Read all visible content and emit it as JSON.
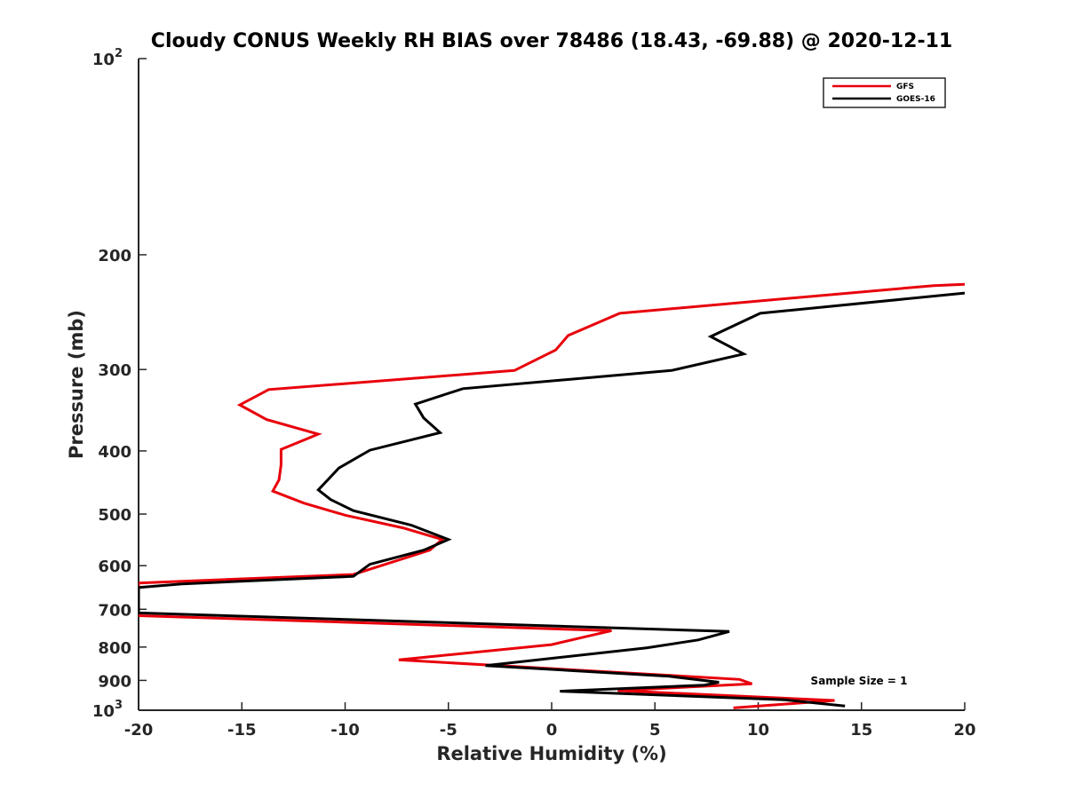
{
  "chart_data": {
    "type": "line",
    "title": "Cloudy CONUS Weekly RH BIAS over 78486 (18.43, -69.88) @ 2020-12-11",
    "xlabel": "Relative Humidity (%)",
    "ylabel": "Pressure (mb)",
    "xlim": [
      -20,
      20
    ],
    "ylim": [
      100,
      1000
    ],
    "y_scale": "log",
    "y_reversed": true,
    "grid": false,
    "legend_placement": "top-right",
    "x_ticks": [
      "-20",
      "-15",
      "-10",
      "-5",
      "0",
      "5",
      "10",
      "15",
      "20"
    ],
    "y_ticks": [
      {
        "value": 100,
        "base": "10",
        "exp": "2"
      },
      {
        "value": 200,
        "label": "200"
      },
      {
        "value": 300,
        "label": "300"
      },
      {
        "value": 400,
        "label": "400"
      },
      {
        "value": 500,
        "label": "500"
      },
      {
        "value": 600,
        "label": "600"
      },
      {
        "value": 700,
        "label": "700"
      },
      {
        "value": 800,
        "label": "800"
      },
      {
        "value": 900,
        "label": "900"
      },
      {
        "value": 1000,
        "base": "10",
        "exp": "3"
      }
    ],
    "annotation": "Sample Size = 1",
    "series": [
      {
        "name": "GFS",
        "color": "#e8000b",
        "points": [
          [
            20,
            222
          ],
          [
            18.5,
            223
          ],
          [
            3.3,
            246
          ],
          [
            0.8,
            266
          ],
          [
            0.2,
            280
          ],
          [
            -1.8,
            301
          ],
          [
            -13.7,
            322
          ],
          [
            -15.1,
            340
          ],
          [
            -13.8,
            358
          ],
          [
            -11.3,
            377
          ],
          [
            -13.1,
            398
          ],
          [
            -13.1,
            420
          ],
          [
            -13.2,
            443
          ],
          [
            -13.5,
            461
          ],
          [
            -12.0,
            481
          ],
          [
            -10.0,
            502
          ],
          [
            -7.2,
            525
          ],
          [
            -5.3,
            547
          ],
          [
            -5.9,
            568
          ],
          [
            -9.6,
            619
          ],
          [
            -20,
            638
          ],
          [
            -20,
            716
          ],
          [
            2.9,
            755
          ],
          [
            1.5,
            773
          ],
          [
            0.0,
            793
          ],
          [
            -7.4,
            837
          ],
          [
            9.1,
            897
          ],
          [
            9.7,
            911
          ],
          [
            3.2,
            933
          ],
          [
            13.7,
            966
          ],
          [
            8.8,
            992
          ]
        ]
      },
      {
        "name": "GOES-16",
        "color": "#000000",
        "points": [
          [
            20,
            229
          ],
          [
            10.1,
            246
          ],
          [
            7.7,
            267
          ],
          [
            9.3,
            284
          ],
          [
            5.8,
            301
          ],
          [
            -4.3,
            321
          ],
          [
            -6.6,
            339
          ],
          [
            -6.2,
            356
          ],
          [
            -5.4,
            375
          ],
          [
            -8.8,
            399
          ],
          [
            -10.3,
            425
          ],
          [
            -11.3,
            459
          ],
          [
            -10.7,
            475
          ],
          [
            -9.6,
            494
          ],
          [
            -6.8,
            520
          ],
          [
            -5.0,
            547
          ],
          [
            -6.2,
            568
          ],
          [
            -8.8,
            597
          ],
          [
            -9.6,
            623
          ],
          [
            -17.9,
            640
          ],
          [
            -20,
            648
          ],
          [
            -20,
            709
          ],
          [
            8.6,
            757
          ],
          [
            7.1,
            780
          ],
          [
            4.6,
            802
          ],
          [
            -3.2,
            854
          ],
          [
            5.7,
            887
          ],
          [
            8.1,
            906
          ],
          [
            7.4,
            915
          ],
          [
            0.4,
            935
          ],
          [
            11.3,
            964
          ],
          [
            14.2,
            985
          ]
        ]
      }
    ]
  }
}
